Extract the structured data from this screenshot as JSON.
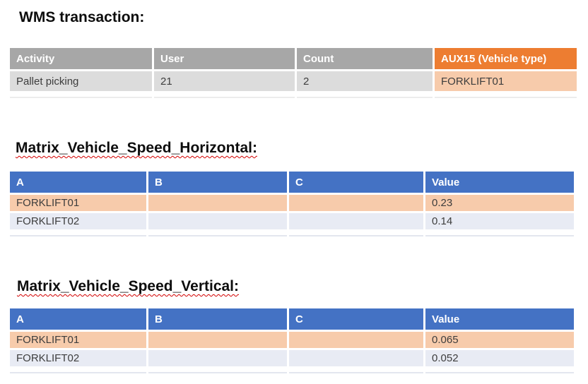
{
  "colors": {
    "gray_header": "#a7a7a7",
    "gray_row": "#dcdcdc",
    "orange_header": "#ed7d31",
    "orange_row": "#f7cbab",
    "blue_header": "#4472c4",
    "pale_blue_row": "#e8ebf4",
    "header_text": "#ffffff",
    "body_text": "#3d3d3d",
    "title_text": "#0d0d0d",
    "spellcheck_underline": "#d40000"
  },
  "wms": {
    "title": "WMS transaction:",
    "headers": [
      "Activity",
      "User",
      "Count",
      "AUX15 (Vehicle type)"
    ],
    "row": {
      "activity": "Pallet picking",
      "user": "21",
      "count": "2",
      "aux15": "FORKLIFT01"
    }
  },
  "horizontal": {
    "title": "Matrix_Vehicle_Speed_Horizontal:",
    "headers": [
      "A",
      "B",
      "C",
      "Value"
    ],
    "rows": [
      {
        "a": "FORKLIFT01",
        "b": "",
        "c": "",
        "value": "0.23"
      },
      {
        "a": "FORKLIFT02",
        "b": "",
        "c": "",
        "value": "0.14"
      }
    ]
  },
  "vertical": {
    "title": "Matrix_Vehicle_Speed_Vertical:",
    "headers": [
      "A",
      "B",
      "C",
      "Value"
    ],
    "rows": [
      {
        "a": "FORKLIFT01",
        "b": "",
        "c": "",
        "value": "0.065"
      },
      {
        "a": "FORKLIFT02",
        "b": "",
        "c": "",
        "value": "0.052"
      }
    ]
  }
}
